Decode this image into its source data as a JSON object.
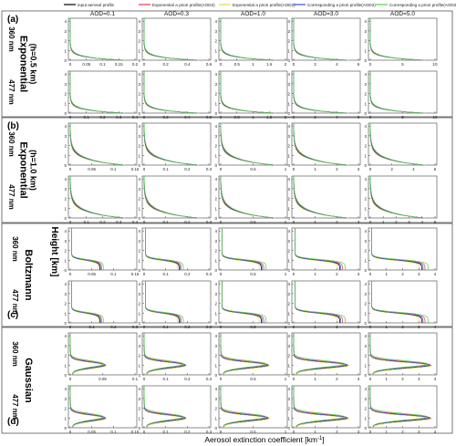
{
  "legend": {
    "entries": [
      {
        "label": "input aerosol profile",
        "color": "#000000"
      },
      {
        "label": "Exponential a priori profile(AOD2)",
        "color": "#e8384f"
      },
      {
        "label": "Exponential a priori profile(AOD2)",
        "color": "#e5d84a"
      },
      {
        "label": "Corresponding a priori profile(AOD2)",
        "color": "#3a4fd8"
      },
      {
        "label": "Corresponding a priori profile(AOD2)",
        "color": "#55d04a"
      }
    ]
  },
  "chart_data": {
    "type": "line",
    "columns": [
      "AOD=0.1",
      "AOD=0.3",
      "AOD=1.0",
      "AOD=3.0",
      "AOD=5.0"
    ],
    "ylabel": "Height [km]",
    "xlabel": "Aerosol extinction coefficient [km",
    "xlabel_sup": "-1",
    "xlabel_end": "]",
    "y_ticks": [
      "0",
      "1",
      "2",
      "3",
      "4"
    ],
    "groups": [
      {
        "letter": "(a)",
        "label_lines": [
          "Exponential",
          "(h=0.5 km)"
        ],
        "rows": [
          "360 nm",
          "477 nm"
        ],
        "shape": "exp",
        "h": 0.5
      },
      {
        "letter": "(b)",
        "label_lines": [
          "Exponential",
          "(h=1.0 km)"
        ],
        "rows": [
          "360 nm",
          "477 nm"
        ],
        "shape": "exp",
        "h": 1.0
      },
      {
        "letter": "(c)",
        "label_lines": [
          "Boltzmann"
        ],
        "rows": [
          "360 nm",
          "477 nm"
        ],
        "shape": "boltz",
        "h": 1.0
      },
      {
        "letter": "(d)",
        "label_lines": [
          "Gaussian"
        ],
        "rows": [
          "360 nm",
          "477 nm"
        ],
        "shape": "gauss",
        "h": 1.0
      }
    ],
    "x_ticks": [
      [
        [
          "0",
          "0.05",
          "0.1",
          "0.15",
          "0.2"
        ],
        [
          "0",
          "0.2",
          "0.4",
          "0.6"
        ],
        [
          "0",
          "0.5",
          "1",
          "1.5",
          "2"
        ],
        [
          "0",
          "2",
          "4",
          "6"
        ],
        [
          "0",
          "5",
          "10"
        ]
      ],
      [
        [
          "0",
          "0.1",
          "0.2",
          "0.3",
          "0.4"
        ],
        [
          "0",
          "0.2",
          "0.4",
          "0.6"
        ],
        [
          "0",
          "0.5",
          "1",
          "1.5",
          "2"
        ],
        [
          "0",
          "2",
          "4",
          "6"
        ],
        [
          "0",
          "5",
          "10"
        ]
      ],
      [
        [
          "0",
          "0.05",
          "0.1",
          "0.15"
        ],
        [
          "0",
          "0.1",
          "0.2",
          "0.3"
        ],
        [
          "0",
          "0.5",
          "1"
        ],
        [
          "0",
          "1",
          "2",
          "3"
        ],
        [
          "0",
          "2",
          "4",
          "6"
        ]
      ],
      [
        [
          "0",
          "0.1",
          "0.2",
          "0.3",
          "0.4"
        ],
        [
          "0",
          "0.1",
          "0.2",
          "0.3"
        ],
        [
          "0",
          "0.5",
          "1"
        ],
        [
          "0",
          "1",
          "2",
          "3"
        ],
        [
          "0",
          "1",
          "2",
          "3",
          "4",
          "5"
        ]
      ],
      [
        [
          "0",
          "0.05",
          "0.1",
          "0.15"
        ],
        [
          "0",
          "0.1",
          "0.2",
          "0.3"
        ],
        [
          "0",
          "0.5",
          "1"
        ],
        [
          "0",
          "1",
          "2",
          "3"
        ],
        [
          "0",
          "1",
          "2",
          "3",
          "4"
        ]
      ],
      [
        [
          "0",
          "0.1",
          "0.2",
          "0.3"
        ],
        [
          "0",
          "0.1",
          "0.2",
          "0.3"
        ],
        [
          "0",
          "0.5",
          "1"
        ],
        [
          "0",
          "1",
          "2",
          "3"
        ],
        [
          "0",
          "1",
          "2",
          "3",
          "4"
        ]
      ],
      [
        [
          "0",
          "0.05",
          "0.1"
        ],
        [
          "0",
          "0.1",
          "0.2",
          "0.3"
        ],
        [
          "0",
          "0.5",
          "1"
        ],
        [
          "0",
          "1",
          "2",
          "3"
        ],
        [
          "0",
          "1",
          "2",
          "3",
          "4"
        ]
      ],
      [
        [
          "0",
          "0.05",
          "0.1",
          "0.15"
        ],
        [
          "0",
          "0.1",
          "0.2",
          "0.3"
        ],
        [
          "0",
          "0.5",
          "1"
        ],
        [
          "0",
          "1",
          "2",
          "3"
        ],
        [
          "0",
          "1",
          "2",
          "3",
          "4"
        ]
      ]
    ]
  }
}
